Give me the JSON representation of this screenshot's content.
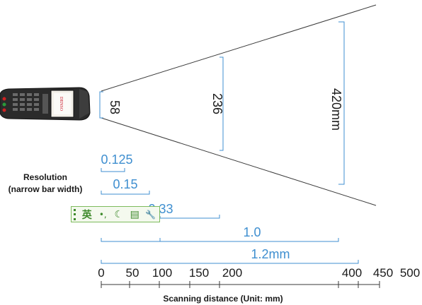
{
  "beam_heights": [
    {
      "value": "58"
    },
    {
      "value": "236"
    },
    {
      "value": "420mm"
    }
  ],
  "resolution_label": {
    "line1": "Resolution",
    "line2": "(narrow bar width)"
  },
  "resolutions": [
    {
      "label": "0.125",
      "range_mm": [
        0,
        35
      ]
    },
    {
      "label": "0.15",
      "range_mm": [
        10,
        70
      ]
    },
    {
      "label": "0.33",
      "range_mm": [
        0,
        180
      ]
    },
    {
      "label": "1.0",
      "range_mm": [
        0,
        340
      ]
    },
    {
      "label": "1.2mm",
      "range_mm": [
        0,
        400
      ]
    }
  ],
  "axis": {
    "ticks": [
      "0",
      "50",
      "100",
      "150",
      "200",
      "400",
      "450",
      "500"
    ],
    "title": "Scanning distance (Unit: mm)"
  },
  "device": {
    "brand": "DENSO",
    "icon": "handheld-scanner-icon"
  },
  "ime_toolbar": {
    "items": [
      {
        "name": "ime-grip-icon",
        "glyph": ""
      },
      {
        "name": "ime-language-icon",
        "glyph": "英"
      },
      {
        "name": "ime-punctuation-icon",
        "glyph": "•,"
      },
      {
        "name": "ime-moon-icon",
        "glyph": "☾"
      },
      {
        "name": "ime-keyboard-icon",
        "glyph": "▤"
      },
      {
        "name": "ime-wrench-icon",
        "glyph": "🔧"
      }
    ]
  },
  "colors": {
    "accent": "#3f8fd0",
    "line": "#3a3a3a",
    "text": "#1a1a1a",
    "toolbar_green": "#3e8a2c"
  }
}
